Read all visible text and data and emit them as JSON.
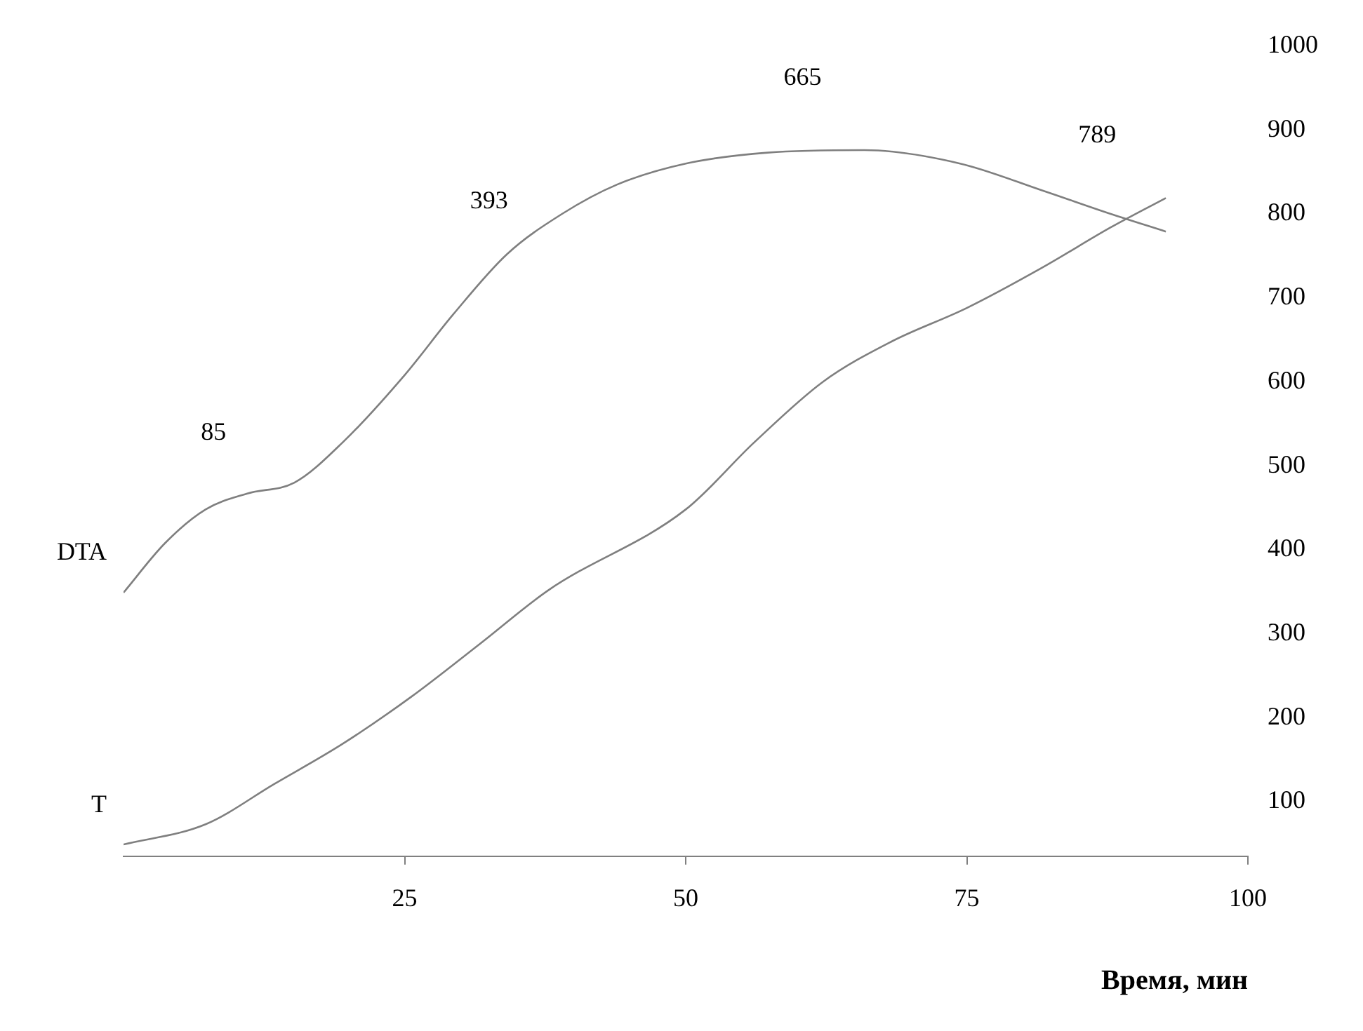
{
  "chart_data": {
    "type": "line",
    "xlabel": "Время, мин",
    "xlim": [
      0,
      100
    ],
    "xticks": [
      25,
      50,
      75,
      100
    ],
    "ylim": [
      35,
      1000
    ],
    "yticks": [
      100,
      200,
      300,
      400,
      500,
      600,
      700,
      800,
      900,
      1000
    ],
    "grid": false,
    "legend": false,
    "marker": "none",
    "series": [
      {
        "name": "DTA",
        "color": "#7f7f7f",
        "x": [
          0,
          3.7,
          7.3,
          11,
          15.2,
          19.5,
          25,
          29.3,
          34.1,
          39,
          43.9,
          50,
          57.3,
          65.9,
          74.4,
          81.7,
          87.8,
          92.7
        ],
        "values": [
          349,
          408,
          448,
          467,
          480,
          528,
          608,
          680,
          752,
          800,
          835,
          860,
          873,
          876,
          860,
          828,
          800,
          779
        ]
      },
      {
        "name": "T",
        "color": "#7f7f7f",
        "x": [
          0,
          7.3,
          13.4,
          19.5,
          25.6,
          31.7,
          37.8,
          50,
          56.1,
          62.2,
          68.3,
          75,
          81.7,
          87.8,
          92.7
        ],
        "values": [
          49,
          73,
          121,
          169,
          225,
          288,
          352,
          448,
          528,
          600,
          648,
          688,
          736,
          784,
          819
        ]
      }
    ],
    "annotations": [
      {
        "text": "85",
        "x": 8,
        "y": 452
      },
      {
        "text": "393",
        "x": 32.5,
        "y": 728
      },
      {
        "text": "665",
        "x": 60.4,
        "y": 875
      },
      {
        "text": "789",
        "x": 86.6,
        "y": 806
      }
    ]
  }
}
